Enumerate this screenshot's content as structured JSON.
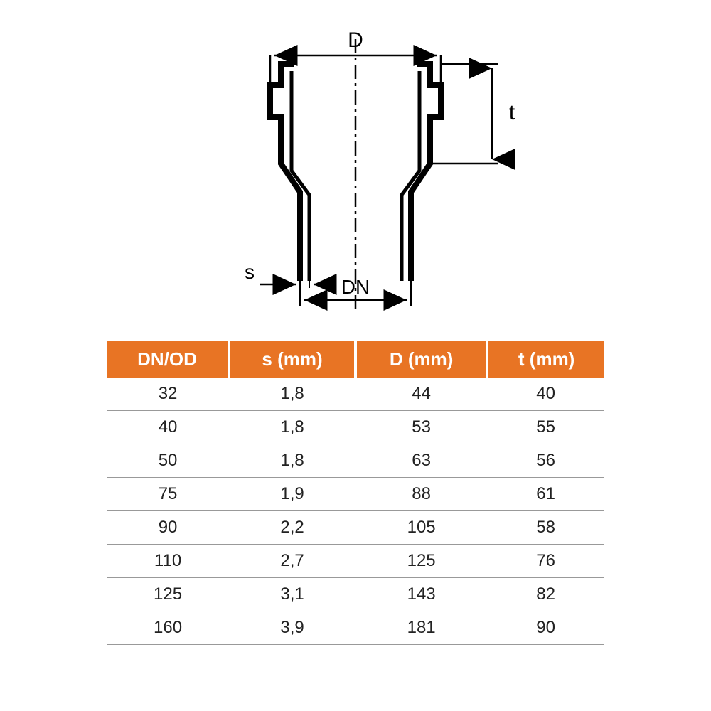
{
  "diagram": {
    "labels": {
      "D": "D",
      "t": "t",
      "s": "s",
      "DN": "DN"
    },
    "stroke": "#000000",
    "centerline": "#000000",
    "label_font_size": 28
  },
  "table": {
    "type": "table",
    "header_bg": "#e87424",
    "header_fg": "#ffffff",
    "row_border": "#999999",
    "cell_color": "#222222",
    "header_fontsize": 26,
    "cell_fontsize": 24,
    "columns": [
      "DN/OD",
      "s (mm)",
      "D (mm)",
      "t (mm)"
    ],
    "rows": [
      [
        "32",
        "1,8",
        "44",
        "40"
      ],
      [
        "40",
        "1,8",
        "53",
        "55"
      ],
      [
        "50",
        "1,8",
        "63",
        "56"
      ],
      [
        "75",
        "1,9",
        "88",
        "61"
      ],
      [
        "90",
        "2,2",
        "105",
        "58"
      ],
      [
        "110",
        "2,7",
        "125",
        "76"
      ],
      [
        "125",
        "3,1",
        "143",
        "82"
      ],
      [
        "160",
        "3,9",
        "181",
        "90"
      ]
    ]
  }
}
